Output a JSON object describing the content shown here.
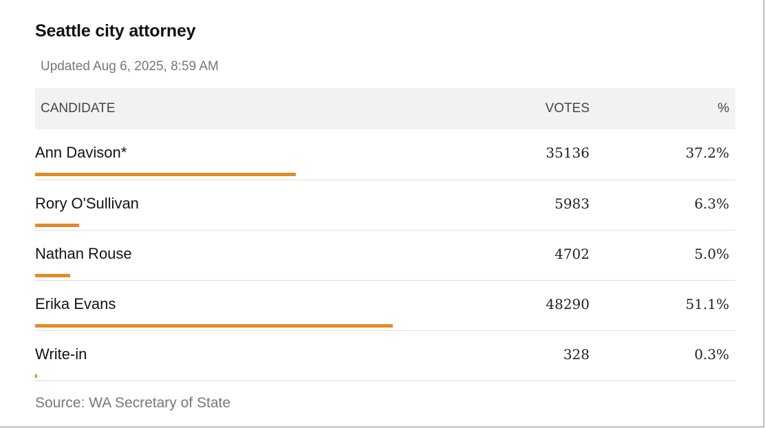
{
  "title": "Seattle city attorney",
  "updated": "Updated Aug 6, 2025, 8:59 AM",
  "columns": {
    "candidate": "CANDIDATE",
    "votes": "VOTES",
    "pct": "%"
  },
  "source": "Source: WA Secretary of State",
  "colors": {
    "bar": "#e08c26",
    "header_bg": "#f2f2f2",
    "muted_text": "#777777"
  },
  "chart_data": {
    "type": "table",
    "title": "Seattle city attorney",
    "columns": [
      "CANDIDATE",
      "VOTES",
      "%"
    ],
    "rows": [
      {
        "candidate": "Ann Davison*",
        "votes": "35136",
        "pct": "37.2%",
        "share": 37.2
      },
      {
        "candidate": "Rory O'Sullivan",
        "votes": "5983",
        "pct": "6.3%",
        "share": 6.3
      },
      {
        "candidate": "Nathan Rouse",
        "votes": "4702",
        "pct": "5.0%",
        "share": 5.0
      },
      {
        "candidate": "Erika Evans",
        "votes": "48290",
        "pct": "51.1%",
        "share": 51.1
      },
      {
        "candidate": "Write-in",
        "votes": "328",
        "pct": "0.3%",
        "share": 0.3
      }
    ]
  }
}
